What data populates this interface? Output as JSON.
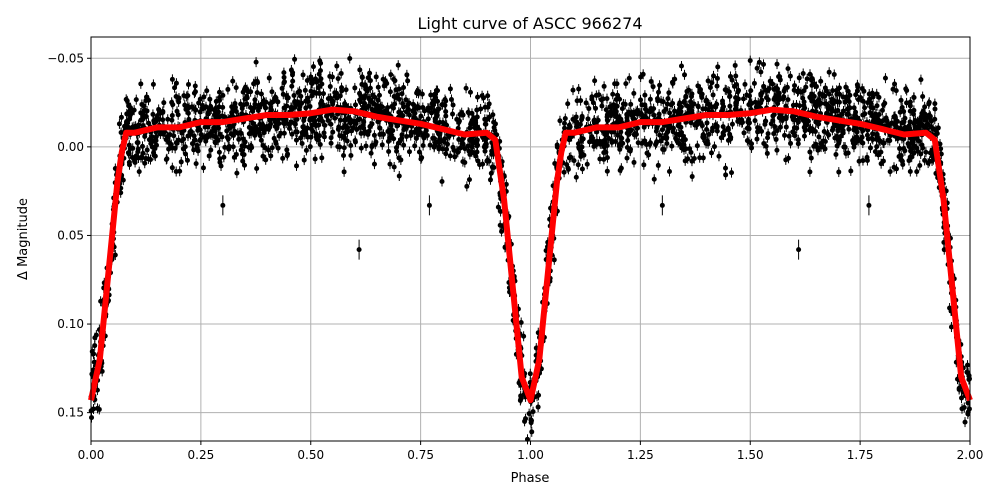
{
  "chart_data": {
    "type": "scatter",
    "title": "Light curve of ASCC 966274",
    "xlabel": "Phase",
    "ylabel": "Δ Magnitude",
    "xlim": [
      0,
      2
    ],
    "ylim": [
      0.166,
      -0.062
    ],
    "y_inverted": true,
    "grid": true,
    "xticks": [
      "0.00",
      "0.25",
      "0.50",
      "0.75",
      "1.00",
      "1.25",
      "1.50",
      "1.75",
      "2.00"
    ],
    "xtick_values": [
      0,
      0.25,
      0.5,
      0.75,
      1,
      1.25,
      1.5,
      1.75,
      2
    ],
    "yticks": [
      "−0.05",
      "0.00",
      "0.05",
      "0.10",
      "0.15"
    ],
    "ytick_values": [
      -0.05,
      0,
      0.05,
      0.1,
      0.15
    ],
    "colors": {
      "points": "#000000",
      "model": "#ff0000",
      "grid": "#b0b0b0"
    },
    "model_curve_one_cycle": {
      "phase": [
        0.0,
        0.02,
        0.04,
        0.06,
        0.07,
        0.08,
        0.1,
        0.15,
        0.2,
        0.25,
        0.3,
        0.35,
        0.4,
        0.45,
        0.5,
        0.55,
        0.6,
        0.65,
        0.7,
        0.75,
        0.8,
        0.85,
        0.9,
        0.92,
        0.94,
        0.96,
        0.98,
        1.0
      ],
      "mag": [
        0.143,
        0.12,
        0.07,
        0.02,
        0.003,
        -0.008,
        -0.008,
        -0.011,
        -0.011,
        -0.014,
        -0.014,
        -0.016,
        -0.018,
        -0.018,
        -0.019,
        -0.021,
        -0.02,
        -0.017,
        -0.015,
        -0.013,
        -0.01,
        -0.007,
        -0.008,
        -0.004,
        0.03,
        0.08,
        0.13,
        0.143
      ]
    },
    "outliers": [
      {
        "phase": 0.3,
        "mag": 0.033
      },
      {
        "phase": 0.61,
        "mag": 0.058
      },
      {
        "phase": 0.77,
        "mag": 0.033
      },
      {
        "phase": 1.3,
        "mag": 0.033
      },
      {
        "phase": 1.61,
        "mag": 0.058
      },
      {
        "phase": 1.77,
        "mag": 0.033
      }
    ]
  }
}
